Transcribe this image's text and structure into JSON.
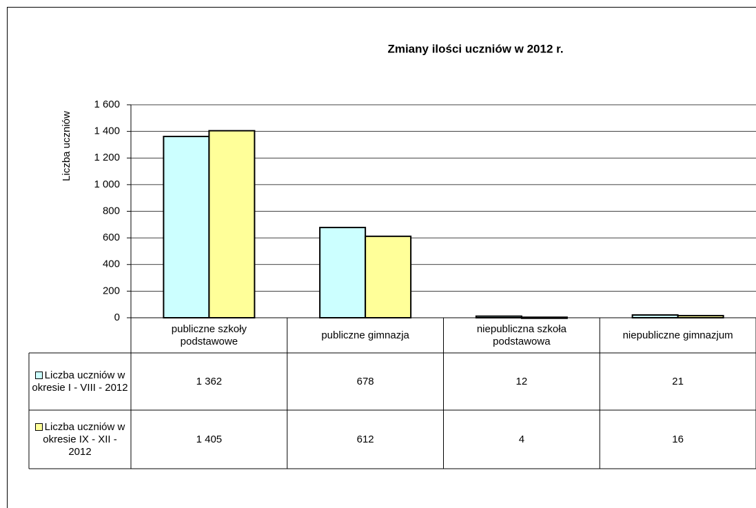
{
  "chart_data": {
    "type": "bar",
    "title": "Zmiany ilości uczniów w 2012 r.",
    "y_label": "Liczba uczniów",
    "categories": [
      "publiczne szkoły podstawowe",
      "publiczne gimnazja",
      "niepubliczna szkoła podstawowa",
      "niepubliczne gimnazjum"
    ],
    "series": [
      {
        "name": "Liczba uczniów w okresie I - VIII - 2012",
        "color": "#ccffff",
        "values": [
          1362,
          678,
          12,
          21
        ],
        "value_labels": [
          "1 362",
          "678",
          "12",
          "21"
        ]
      },
      {
        "name": "Liczba uczniów w okresie IX - XII - 2012",
        "color": "#ffff99",
        "values": [
          1405,
          612,
          4,
          16
        ],
        "value_labels": [
          "1 405",
          "612",
          "4",
          "16"
        ]
      }
    ],
    "ylim": [
      0,
      1600
    ],
    "yticks": [
      0,
      200,
      400,
      600,
      800,
      {
        "value": 1000,
        "label": "1 000"
      },
      {
        "value": 1200,
        "label": "1 200"
      },
      {
        "value": 1400,
        "label": "1 400"
      },
      {
        "value": 1600,
        "label": "1 600"
      }
    ],
    "grid": true
  }
}
